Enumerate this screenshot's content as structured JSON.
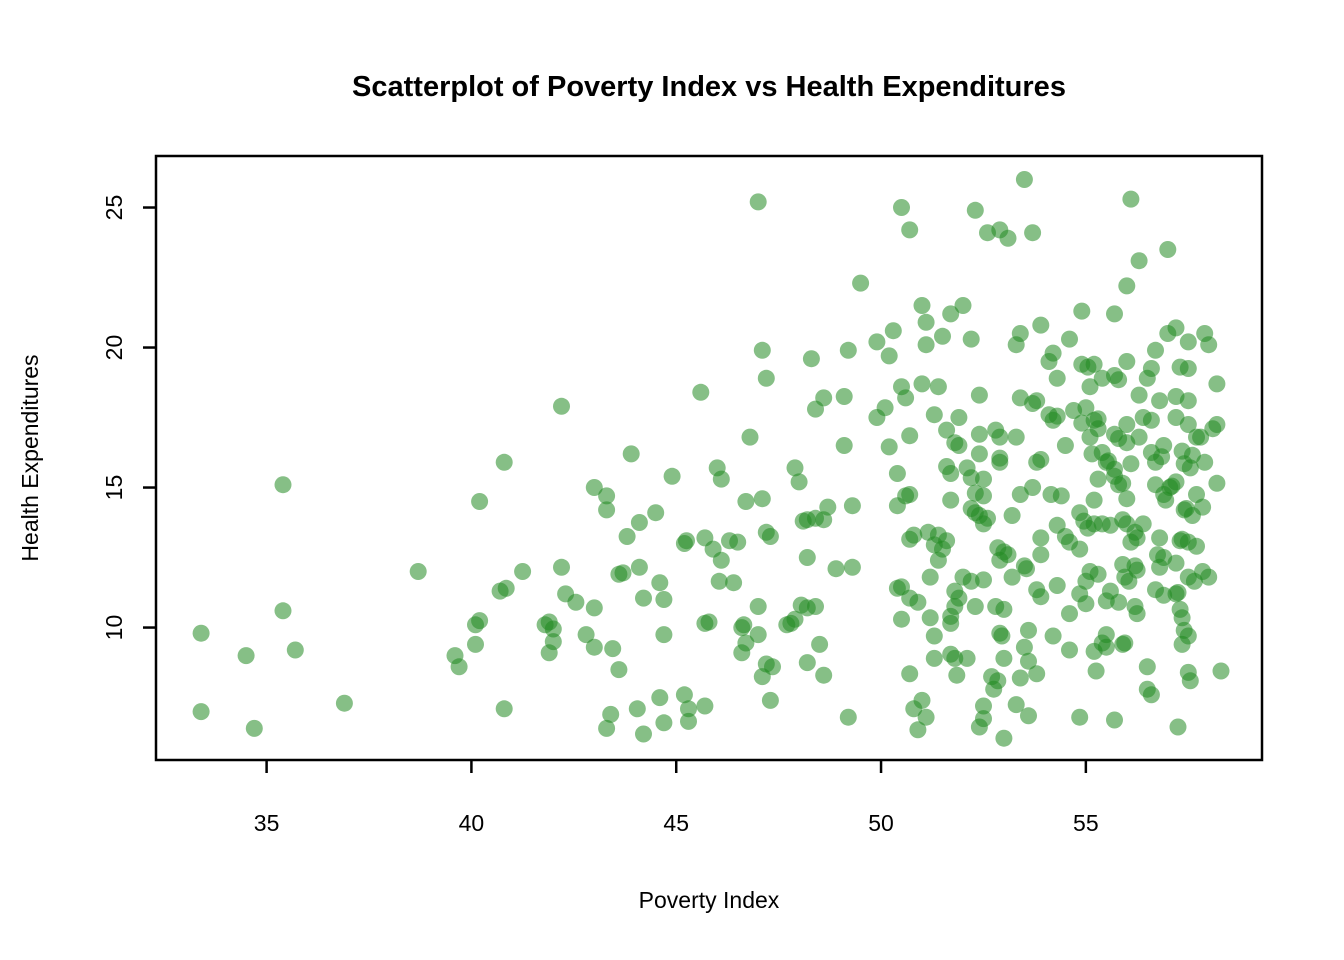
{
  "chart_data": {
    "type": "scatter",
    "title": "Scatterplot of Poverty Index vs Health Expenditures",
    "xlabel": "Poverty Index",
    "ylabel": "Health Expenditures",
    "x_ticks": [
      35,
      40,
      45,
      50,
      55
    ],
    "y_ticks": [
      10,
      15,
      20,
      25
    ],
    "xlim": [
      32.3,
      59.3
    ],
    "ylim": [
      5.27,
      26.84
    ],
    "grid": false,
    "legend": "none",
    "point_color": "#228B22",
    "point_opacity": 0.55,
    "axis_color": "#000000",
    "background": "#ffffff",
    "points": [
      [
        33.4,
        9.8
      ],
      [
        33.4,
        7.0
      ],
      [
        34.5,
        9.0
      ],
      [
        34.7,
        6.4
      ],
      [
        35.4,
        15.1
      ],
      [
        35.4,
        10.6
      ],
      [
        35.7,
        9.2
      ],
      [
        36.9,
        7.3
      ],
      [
        38.7,
        12.0
      ],
      [
        39.6,
        9.0
      ],
      [
        39.7,
        8.6
      ],
      [
        40.1,
        10.1
      ],
      [
        40.2,
        10.25
      ],
      [
        40.1,
        9.4
      ],
      [
        40.2,
        14.5
      ],
      [
        40.8,
        15.9
      ],
      [
        40.7,
        11.3
      ],
      [
        40.85,
        11.4
      ],
      [
        40.8,
        7.1
      ],
      [
        41.25,
        12.0
      ],
      [
        47.0,
        25.2
      ],
      [
        49.5,
        22.3
      ],
      [
        50.3,
        20.6
      ],
      [
        49.9,
        20.2
      ],
      [
        50.2,
        19.7
      ],
      [
        49.2,
        19.9
      ],
      [
        47.1,
        19.9
      ],
      [
        48.3,
        19.6
      ],
      [
        47.2,
        18.9
      ],
      [
        45.6,
        18.4
      ],
      [
        42.2,
        17.9
      ],
      [
        48.6,
        18.2
      ],
      [
        48.4,
        17.8
      ],
      [
        49.1,
        18.25
      ],
      [
        50.1,
        17.85
      ],
      [
        49.9,
        17.5
      ],
      [
        46.8,
        16.8
      ],
      [
        43.9,
        16.2
      ],
      [
        49.1,
        16.5
      ],
      [
        50.2,
        16.45
      ],
      [
        53.5,
        26.0
      ],
      [
        56.1,
        25.3
      ],
      [
        50.5,
        25.0
      ],
      [
        52.3,
        24.9
      ],
      [
        50.7,
        24.2
      ],
      [
        52.6,
        24.1
      ],
      [
        52.9,
        24.2
      ],
      [
        53.1,
        23.9
      ],
      [
        53.7,
        24.1
      ],
      [
        57.0,
        23.5
      ],
      [
        56.3,
        23.1
      ],
      [
        56.0,
        22.2
      ],
      [
        51.0,
        21.5
      ],
      [
        52.0,
        21.5
      ],
      [
        51.7,
        21.2
      ],
      [
        51.1,
        20.9
      ],
      [
        54.9,
        21.3
      ],
      [
        55.7,
        21.2
      ],
      [
        53.9,
        20.8
      ],
      [
        51.5,
        20.4
      ],
      [
        51.1,
        20.1
      ],
      [
        52.2,
        20.3
      ],
      [
        53.4,
        20.5
      ],
      [
        53.3,
        20.1
      ],
      [
        54.6,
        20.3
      ],
      [
        57.0,
        20.5
      ],
      [
        57.2,
        20.7
      ],
      [
        57.9,
        20.5
      ],
      [
        57.5,
        20.2
      ],
      [
        58.0,
        20.1
      ],
      [
        54.2,
        19.8
      ],
      [
        56.7,
        19.9
      ],
      [
        54.1,
        19.5
      ],
      [
        54.9,
        19.4
      ],
      [
        55.05,
        19.3
      ],
      [
        55.2,
        19.4
      ],
      [
        56.0,
        19.5
      ],
      [
        56.6,
        19.25
      ],
      [
        57.3,
        19.3
      ],
      [
        57.5,
        19.25
      ],
      [
        54.3,
        18.9
      ],
      [
        55.4,
        18.9
      ],
      [
        55.7,
        19.0
      ],
      [
        55.8,
        18.85
      ],
      [
        56.5,
        18.9
      ],
      [
        50.5,
        18.6
      ],
      [
        51.0,
        18.7
      ],
      [
        51.4,
        18.6
      ],
      [
        50.6,
        18.2
      ],
      [
        52.4,
        18.3
      ],
      [
        53.4,
        18.2
      ],
      [
        53.8,
        18.1
      ],
      [
        53.7,
        18.0
      ],
      [
        56.3,
        18.3
      ],
      [
        56.8,
        18.1
      ],
      [
        57.2,
        18.25
      ],
      [
        57.5,
        18.1
      ],
      [
        58.2,
        18.7
      ],
      [
        55.1,
        18.6
      ],
      [
        54.7,
        17.75
      ],
      [
        55.0,
        17.85
      ],
      [
        54.1,
        17.6
      ],
      [
        54.2,
        17.4
      ],
      [
        54.3,
        17.55
      ],
      [
        54.9,
        17.3
      ],
      [
        55.2,
        17.4
      ],
      [
        55.3,
        17.1
      ],
      [
        55.3,
        17.45
      ],
      [
        56.0,
        17.25
      ],
      [
        55.1,
        16.8
      ],
      [
        56.0,
        16.6
      ],
      [
        56.4,
        17.5
      ],
      [
        56.6,
        17.4
      ],
      [
        57.2,
        17.5
      ],
      [
        57.5,
        17.25
      ],
      [
        58.1,
        17.1
      ],
      [
        58.2,
        17.25
      ],
      [
        51.3,
        17.6
      ],
      [
        51.9,
        17.5
      ],
      [
        51.6,
        17.05
      ],
      [
        51.8,
        16.6
      ],
      [
        51.9,
        16.5
      ],
      [
        52.4,
        16.9
      ],
      [
        52.8,
        17.05
      ],
      [
        52.9,
        16.8
      ],
      [
        53.3,
        16.8
      ],
      [
        50.7,
        16.85
      ],
      [
        54.5,
        16.5
      ],
      [
        55.4,
        16.25
      ],
      [
        55.7,
        16.9
      ],
      [
        55.8,
        16.75
      ],
      [
        56.3,
        16.8
      ],
      [
        56.9,
        16.5
      ],
      [
        57.35,
        16.3
      ],
      [
        57.7,
        16.8
      ],
      [
        57.8,
        16.8
      ],
      [
        52.4,
        16.2
      ],
      [
        55.15,
        16.2
      ],
      [
        56.6,
        16.25
      ],
      [
        56.85,
        16.1
      ],
      [
        57.6,
        16.15
      ],
      [
        52.9,
        16.05
      ],
      [
        53.9,
        16.0
      ],
      [
        55.55,
        15.95
      ],
      [
        46.0,
        15.7
      ],
      [
        46.1,
        15.3
      ],
      [
        44.9,
        15.4
      ],
      [
        47.9,
        15.7
      ],
      [
        48.0,
        15.2
      ],
      [
        43.0,
        15.0
      ],
      [
        43.3,
        14.7
      ],
      [
        43.3,
        14.2
      ],
      [
        46.7,
        14.5
      ],
      [
        47.1,
        14.6
      ],
      [
        48.7,
        14.3
      ],
      [
        49.3,
        14.35
      ],
      [
        48.1,
        13.8
      ],
      [
        48.2,
        13.85
      ],
      [
        48.4,
        13.9
      ],
      [
        48.6,
        13.85
      ],
      [
        44.5,
        14.1
      ],
      [
        44.1,
        13.75
      ],
      [
        43.8,
        13.25
      ],
      [
        45.2,
        13.0
      ],
      [
        45.25,
        13.1
      ],
      [
        45.7,
        13.2
      ],
      [
        45.9,
        12.8
      ],
      [
        46.3,
        13.1
      ],
      [
        46.5,
        13.05
      ],
      [
        47.2,
        13.4
      ],
      [
        47.3,
        13.25
      ],
      [
        48.2,
        12.5
      ],
      [
        48.9,
        12.1
      ],
      [
        49.3,
        12.15
      ],
      [
        42.2,
        12.15
      ],
      [
        43.6,
        11.9
      ],
      [
        43.7,
        11.95
      ],
      [
        44.1,
        12.15
      ],
      [
        44.6,
        11.6
      ],
      [
        44.7,
        11.0
      ],
      [
        44.2,
        11.05
      ],
      [
        42.3,
        11.2
      ],
      [
        42.55,
        10.9
      ],
      [
        43.0,
        10.7
      ],
      [
        46.05,
        11.65
      ],
      [
        46.4,
        11.6
      ],
      [
        46.1,
        12.4
      ],
      [
        47.0,
        10.75
      ],
      [
        45.7,
        10.15
      ],
      [
        45.8,
        10.2
      ],
      [
        46.6,
        10.0
      ],
      [
        46.65,
        10.1
      ],
      [
        46.7,
        9.45
      ],
      [
        46.6,
        9.1
      ],
      [
        47.0,
        9.75
      ],
      [
        41.8,
        10.1
      ],
      [
        41.9,
        10.2
      ],
      [
        42.0,
        9.95
      ],
      [
        42.0,
        9.5
      ],
      [
        41.9,
        9.1
      ],
      [
        42.8,
        9.75
      ],
      [
        43.0,
        9.3
      ],
      [
        43.45,
        9.25
      ],
      [
        43.6,
        8.5
      ],
      [
        44.7,
        9.75
      ],
      [
        47.7,
        10.1
      ],
      [
        47.8,
        10.15
      ],
      [
        47.9,
        10.3
      ],
      [
        48.05,
        10.8
      ],
      [
        48.2,
        10.7
      ],
      [
        48.4,
        10.75
      ],
      [
        48.5,
        9.4
      ],
      [
        48.6,
        8.3
      ],
      [
        47.2,
        8.7
      ],
      [
        47.35,
        8.6
      ],
      [
        47.1,
        8.25
      ],
      [
        48.2,
        8.75
      ],
      [
        47.3,
        7.4
      ],
      [
        44.6,
        7.5
      ],
      [
        45.2,
        7.6
      ],
      [
        45.3,
        7.1
      ],
      [
        45.7,
        7.2
      ],
      [
        44.05,
        7.1
      ],
      [
        43.4,
        6.9
      ],
      [
        45.3,
        6.65
      ],
      [
        44.7,
        6.6
      ],
      [
        43.3,
        6.4
      ],
      [
        44.2,
        6.2
      ],
      [
        49.2,
        6.8
      ],
      [
        51.6,
        15.75
      ],
      [
        52.1,
        15.7
      ],
      [
        52.2,
        15.35
      ],
      [
        51.7,
        15.5
      ],
      [
        52.5,
        15.3
      ],
      [
        52.9,
        15.9
      ],
      [
        53.8,
        15.9
      ],
      [
        50.4,
        15.5
      ],
      [
        50.6,
        14.7
      ],
      [
        50.7,
        14.75
      ],
      [
        50.4,
        14.35
      ],
      [
        51.7,
        14.55
      ],
      [
        52.3,
        14.8
      ],
      [
        52.5,
        14.7
      ],
      [
        53.4,
        14.75
      ],
      [
        53.7,
        15.0
      ],
      [
        54.15,
        14.75
      ],
      [
        54.4,
        14.7
      ],
      [
        52.2,
        14.25
      ],
      [
        52.4,
        14.0
      ],
      [
        52.3,
        14.1
      ],
      [
        52.6,
        13.9
      ],
      [
        52.5,
        13.7
      ],
      [
        53.2,
        14.0
      ],
      [
        51.15,
        13.4
      ],
      [
        51.4,
        13.3
      ],
      [
        50.8,
        13.3
      ],
      [
        51.6,
        13.1
      ],
      [
        51.3,
        12.95
      ],
      [
        51.5,
        12.8
      ],
      [
        50.7,
        13.15
      ],
      [
        51.4,
        12.4
      ],
      [
        54.3,
        13.65
      ],
      [
        54.5,
        13.25
      ],
      [
        54.6,
        13.05
      ],
      [
        53.9,
        13.2
      ],
      [
        52.85,
        12.85
      ],
      [
        53.0,
        12.7
      ],
      [
        52.9,
        12.4
      ],
      [
        53.1,
        12.6
      ],
      [
        53.5,
        12.2
      ],
      [
        53.55,
        12.1
      ],
      [
        53.2,
        11.8
      ],
      [
        53.9,
        12.6
      ],
      [
        51.2,
        11.8
      ],
      [
        52.0,
        11.8
      ],
      [
        52.2,
        11.65
      ],
      [
        52.5,
        11.7
      ],
      [
        51.8,
        11.3
      ],
      [
        51.9,
        11.05
      ],
      [
        50.4,
        11.4
      ],
      [
        50.5,
        11.45
      ],
      [
        50.7,
        11.05
      ],
      [
        50.9,
        10.9
      ],
      [
        53.8,
        11.35
      ],
      [
        53.9,
        11.1
      ],
      [
        54.3,
        11.5
      ],
      [
        51.8,
        10.75
      ],
      [
        52.3,
        10.75
      ],
      [
        51.7,
        10.4
      ],
      [
        51.7,
        10.15
      ],
      [
        52.8,
        10.75
      ],
      [
        53.0,
        10.65
      ],
      [
        50.5,
        10.3
      ],
      [
        51.2,
        10.35
      ],
      [
        52.9,
        9.8
      ],
      [
        52.95,
        9.7
      ],
      [
        53.6,
        9.9
      ],
      [
        54.2,
        9.7
      ],
      [
        51.3,
        9.7
      ],
      [
        51.7,
        9.05
      ],
      [
        51.8,
        8.9
      ],
      [
        51.3,
        8.9
      ],
      [
        52.1,
        8.9
      ],
      [
        53.0,
        8.9
      ],
      [
        53.5,
        9.3
      ],
      [
        53.6,
        8.8
      ],
      [
        50.7,
        8.35
      ],
      [
        51.85,
        8.3
      ],
      [
        52.7,
        8.25
      ],
      [
        52.85,
        8.1
      ],
      [
        53.4,
        8.2
      ],
      [
        53.8,
        8.35
      ],
      [
        52.75,
        7.8
      ],
      [
        51.0,
        7.4
      ],
      [
        50.8,
        7.1
      ],
      [
        51.1,
        6.8
      ],
      [
        52.5,
        7.2
      ],
      [
        52.5,
        6.75
      ],
      [
        53.3,
        7.25
      ],
      [
        53.6,
        6.85
      ],
      [
        50.9,
        6.35
      ],
      [
        52.4,
        6.45
      ],
      [
        53.0,
        6.05
      ],
      [
        54.6,
        10.5
      ],
      [
        54.6,
        9.2
      ],
      [
        55.5,
        15.9
      ],
      [
        55.7,
        15.65
      ],
      [
        56.1,
        15.85
      ],
      [
        56.7,
        15.9
      ],
      [
        57.4,
        15.85
      ],
      [
        57.55,
        15.7
      ],
      [
        57.9,
        15.9
      ],
      [
        55.3,
        15.3
      ],
      [
        55.7,
        15.4
      ],
      [
        55.8,
        15.1
      ],
      [
        55.9,
        15.15
      ],
      [
        56.7,
        15.1
      ],
      [
        57.05,
        15.0
      ],
      [
        57.1,
        15.05
      ],
      [
        57.2,
        15.2
      ],
      [
        56.9,
        14.75
      ],
      [
        58.2,
        15.15
      ],
      [
        57.7,
        14.75
      ],
      [
        55.2,
        14.55
      ],
      [
        56.0,
        14.6
      ],
      [
        56.95,
        14.55
      ],
      [
        54.85,
        14.1
      ],
      [
        57.4,
        14.2
      ],
      [
        57.45,
        14.25
      ],
      [
        57.6,
        14.0
      ],
      [
        57.85,
        14.3
      ],
      [
        54.95,
        13.8
      ],
      [
        55.2,
        13.7
      ],
      [
        55.4,
        13.7
      ],
      [
        55.6,
        13.65
      ],
      [
        55.05,
        13.55
      ],
      [
        55.9,
        13.85
      ],
      [
        56.0,
        13.7
      ],
      [
        56.4,
        13.7
      ],
      [
        56.2,
        13.4
      ],
      [
        56.25,
        13.2
      ],
      [
        56.1,
        13.05
      ],
      [
        56.8,
        13.2
      ],
      [
        57.3,
        13.1
      ],
      [
        57.35,
        13.15
      ],
      [
        57.5,
        13.05
      ],
      [
        57.7,
        12.9
      ],
      [
        54.85,
        12.8
      ],
      [
        56.75,
        12.6
      ],
      [
        56.9,
        12.5
      ],
      [
        56.8,
        12.15
      ],
      [
        57.2,
        12.3
      ],
      [
        55.9,
        12.25
      ],
      [
        56.2,
        12.2
      ],
      [
        56.25,
        12.05
      ],
      [
        55.1,
        12.0
      ],
      [
        55.3,
        11.9
      ],
      [
        55.0,
        11.65
      ],
      [
        55.95,
        11.8
      ],
      [
        56.05,
        11.65
      ],
      [
        57.5,
        11.8
      ],
      [
        57.65,
        11.65
      ],
      [
        57.85,
        12.0
      ],
      [
        58.0,
        11.8
      ],
      [
        54.85,
        11.2
      ],
      [
        55.6,
        11.3
      ],
      [
        55.8,
        10.9
      ],
      [
        55.5,
        10.95
      ],
      [
        56.7,
        11.35
      ],
      [
        56.9,
        11.15
      ],
      [
        57.2,
        11.2
      ],
      [
        57.25,
        11.25
      ],
      [
        55.0,
        10.85
      ],
      [
        56.2,
        10.75
      ],
      [
        56.25,
        10.5
      ],
      [
        57.3,
        10.65
      ],
      [
        57.35,
        10.35
      ],
      [
        55.5,
        9.75
      ],
      [
        55.4,
        9.45
      ],
      [
        55.5,
        9.3
      ],
      [
        55.2,
        9.15
      ],
      [
        55.9,
        9.4
      ],
      [
        55.95,
        9.45
      ],
      [
        57.4,
        9.9
      ],
      [
        57.5,
        9.7
      ],
      [
        57.35,
        9.4
      ],
      [
        55.25,
        8.45
      ],
      [
        56.5,
        8.6
      ],
      [
        57.5,
        8.4
      ],
      [
        58.3,
        8.45
      ],
      [
        57.55,
        8.1
      ],
      [
        56.5,
        7.8
      ],
      [
        56.6,
        7.6
      ],
      [
        54.85,
        6.8
      ],
      [
        55.7,
        6.7
      ],
      [
        57.25,
        6.45
      ]
    ]
  }
}
